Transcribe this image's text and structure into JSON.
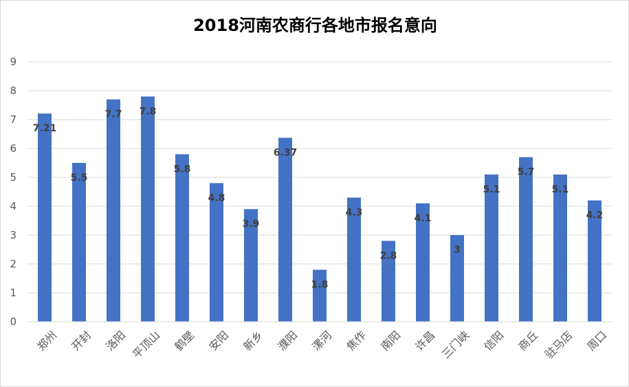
{
  "chart_data": {
    "type": "bar",
    "title": "2018河南农商行各地市报名意向",
    "categories": [
      "郑州",
      "开封",
      "洛阳",
      "平顶山",
      "鹤壁",
      "安阳",
      "新乡",
      "濮阳",
      "漯河",
      "焦作",
      "南阳",
      "许昌",
      "三门峡",
      "信阳",
      "商丘",
      "驻马店",
      "周口"
    ],
    "values": [
      7.21,
      5.5,
      7.7,
      7.8,
      5.8,
      4.8,
      3.9,
      6.37,
      1.8,
      4.3,
      2.8,
      4.1,
      3,
      5.1,
      5.7,
      5.1,
      4.2
    ],
    "value_labels": [
      "7.21",
      "5.5",
      "7.7",
      "7.8",
      "5.8",
      "4.8",
      "3.9",
      "6.37",
      "1.8",
      "4.3",
      "2.8",
      "4.1",
      "3",
      "5.1",
      "5.7",
      "5.1",
      "4.2"
    ],
    "ylim": [
      0,
      9
    ],
    "yticks": [
      "0",
      "1",
      "2",
      "3",
      "4",
      "5",
      "6",
      "7",
      "8",
      "9"
    ],
    "grid": true,
    "legend": "none",
    "bar_color": "#4472c4",
    "grid_color": "#d9d9d9"
  }
}
